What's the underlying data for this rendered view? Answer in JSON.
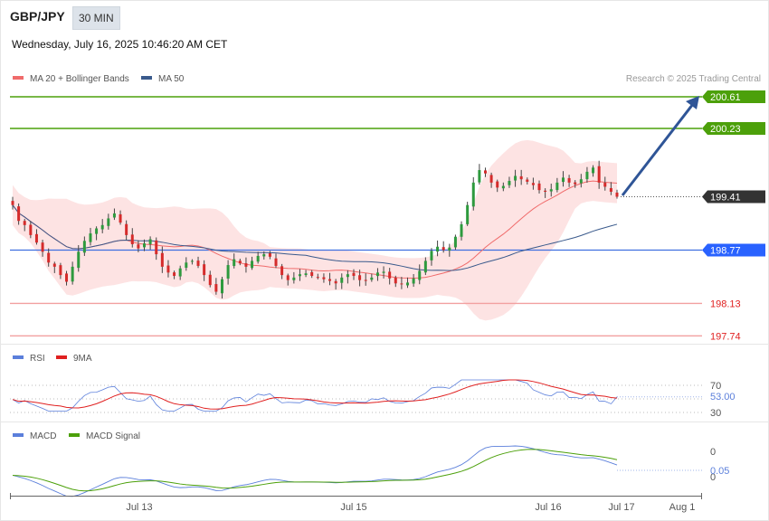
{
  "header": {
    "pair": "GBP/JPY",
    "timeframe": "30 MIN",
    "datetime": "Wednesday, July 16, 2025 10:46:20 AM CET"
  },
  "legend": {
    "ma20": "MA 20 + Bollinger Bands",
    "ma50": "MA 50",
    "ma20_color": "#f06b6b",
    "ma50_color": "#3a5a8c"
  },
  "watermark": "Research © 2025 Trading Central",
  "price_levels": [
    {
      "value": 200.61,
      "label": "200.61",
      "kind": "resistance",
      "color": "#4ca00a"
    },
    {
      "value": 200.23,
      "label": "200.23",
      "kind": "resistance",
      "color": "#4ca00a"
    },
    {
      "value": 199.41,
      "label": "199.41",
      "kind": "last",
      "color": "#333333"
    },
    {
      "value": 198.77,
      "label": "198.77",
      "kind": "pivot",
      "color": "#2962ff"
    },
    {
      "value": 198.13,
      "label": "198.13",
      "kind": "support",
      "color": "#e02020"
    },
    {
      "value": 197.74,
      "label": "197.74",
      "kind": "support",
      "color": "#e02020"
    }
  ],
  "rsi": {
    "legend_rsi": "RSI",
    "legend_ma": "9MA",
    "rsi_color": "#5b7fdb",
    "ma_color": "#e02020",
    "levels": [
      "70",
      "30"
    ],
    "value_label": "53.00"
  },
  "macd": {
    "legend_macd": "MACD",
    "legend_signal": "MACD Signal",
    "macd_color": "#5b7fdb",
    "signal_color": "#4ca00a",
    "levels": [
      "0",
      "0"
    ],
    "value_label": "0.05"
  },
  "x_axis": {
    "labels": [
      "Jul 13",
      "Jul 15",
      "Jul 16",
      "Jul 17",
      "Aug 1"
    ]
  },
  "chart_data": {
    "type": "candlestick",
    "title": "GBP/JPY",
    "ylim": [
      197.6,
      200.8
    ],
    "x_ticks": [
      "Jul 13",
      "Jul 15",
      "Jul 16",
      "Jul 17",
      "Aug 1"
    ],
    "close_series": [
      199.31,
      199.12,
      199.07,
      198.95,
      198.86,
      198.75,
      198.62,
      198.57,
      198.47,
      198.39,
      198.57,
      198.75,
      198.88,
      198.97,
      199.03,
      199.07,
      199.15,
      199.21,
      199.1,
      198.95,
      198.84,
      198.79,
      198.85,
      198.9,
      198.72,
      198.57,
      198.5,
      198.46,
      198.55,
      198.62,
      198.64,
      198.58,
      198.47,
      198.35,
      198.27,
      198.42,
      198.59,
      198.66,
      198.61,
      198.57,
      198.64,
      198.7,
      198.72,
      198.69,
      198.58,
      198.47,
      198.41,
      198.44,
      198.48,
      198.49,
      198.46,
      198.44,
      198.42,
      198.4,
      198.37,
      198.44,
      198.48,
      198.46,
      198.41,
      198.4,
      198.44,
      198.5,
      198.51,
      198.43,
      198.37,
      198.36,
      198.38,
      198.43,
      198.52,
      198.64,
      198.76,
      198.81,
      198.77,
      198.8,
      198.93,
      199.08,
      199.31,
      199.58,
      199.73,
      199.69,
      199.58,
      199.52,
      199.54,
      199.6,
      199.66,
      199.62,
      199.59,
      199.55,
      199.49,
      199.47,
      199.5,
      199.58,
      199.64,
      199.58,
      199.56,
      199.62,
      199.71,
      199.76,
      199.58,
      199.53,
      199.47,
      199.41
    ],
    "ma20_last": 199.38,
    "ma50_last": 199.22,
    "rsi_last": 53.0,
    "macd_last": 0.05,
    "forecast_target": 200.61
  }
}
